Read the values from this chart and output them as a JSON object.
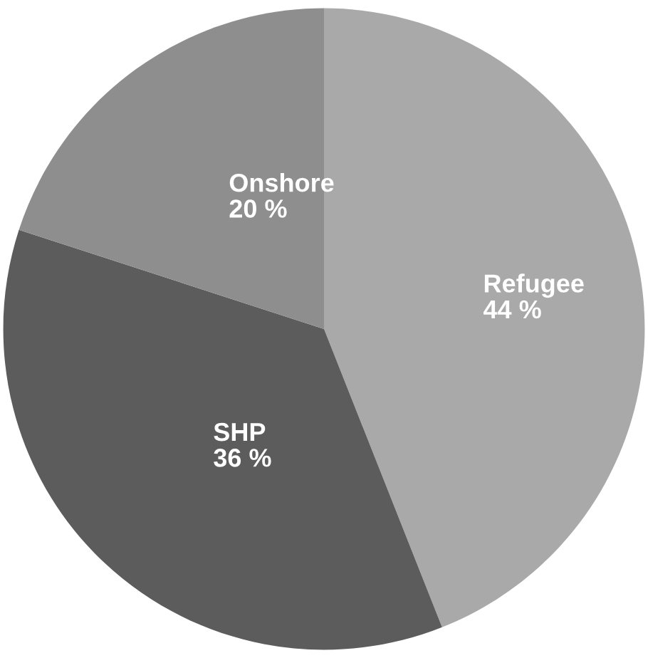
{
  "chart_data": {
    "type": "pie",
    "categories": [
      "Refugee",
      "SHP",
      "Onshore"
    ],
    "values": [
      44,
      36,
      20
    ],
    "value_labels": [
      "44 %",
      "36 %",
      "20 %"
    ],
    "colors": [
      "#a9a9a9",
      "#5c5c5c",
      "#8e8e8e"
    ]
  }
}
